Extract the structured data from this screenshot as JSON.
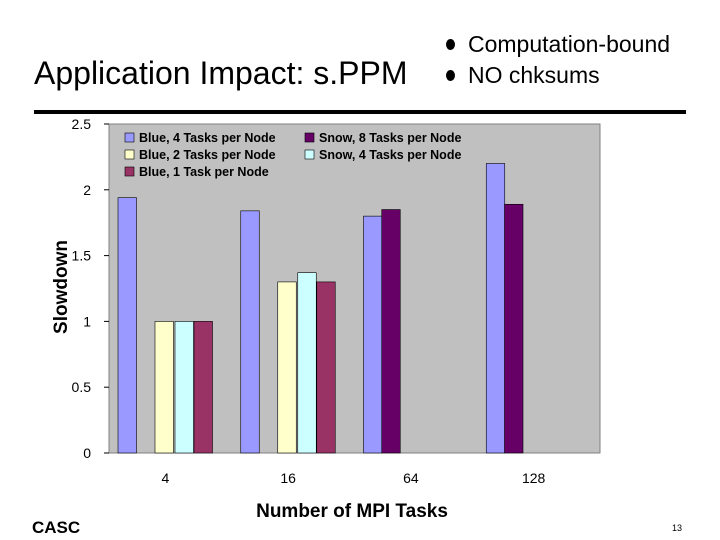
{
  "slide": {
    "title": "Application Impact: s.PPM",
    "bullets": [
      "Computation-bound",
      "NO chksums"
    ],
    "footer_left": "CASC",
    "page_number": "13"
  },
  "chart_data": {
    "type": "bar",
    "xlabel": "Number of MPI Tasks",
    "ylabel": "Slowdown",
    "categories": [
      "4",
      "16",
      "64",
      "128"
    ],
    "ylim": [
      0,
      2.5
    ],
    "yticks": [
      "0",
      "0.5",
      "1",
      "1.5",
      "2",
      "2.5"
    ],
    "grid": false,
    "legend_position": "top-left inside plot",
    "series": [
      {
        "name": "Blue, 4 Tasks per Node",
        "color": "#9999ff",
        "values": [
          1.94,
          1.84,
          1.8,
          2.2
        ]
      },
      {
        "name": "Blue, 2 Tasks per Node",
        "color": "#ffffcc",
        "values": [
          1.0,
          1.3,
          null,
          null
        ]
      },
      {
        "name": "Snow, 4 Tasks per Node",
        "color": "#ccffff",
        "values": [
          1.0,
          1.37,
          null,
          null
        ]
      },
      {
        "name": "Blue, 1 Task per Node",
        "color": "#993366",
        "values": [
          1.0,
          1.3,
          null,
          null
        ]
      },
      {
        "name": "Snow, 8 Tasks per Node",
        "color": "#660066",
        "values": [
          null,
          1.85,
          1.89,
          null
        ]
      }
    ],
    "legend_order": [
      0,
      4,
      1,
      2,
      3
    ]
  }
}
